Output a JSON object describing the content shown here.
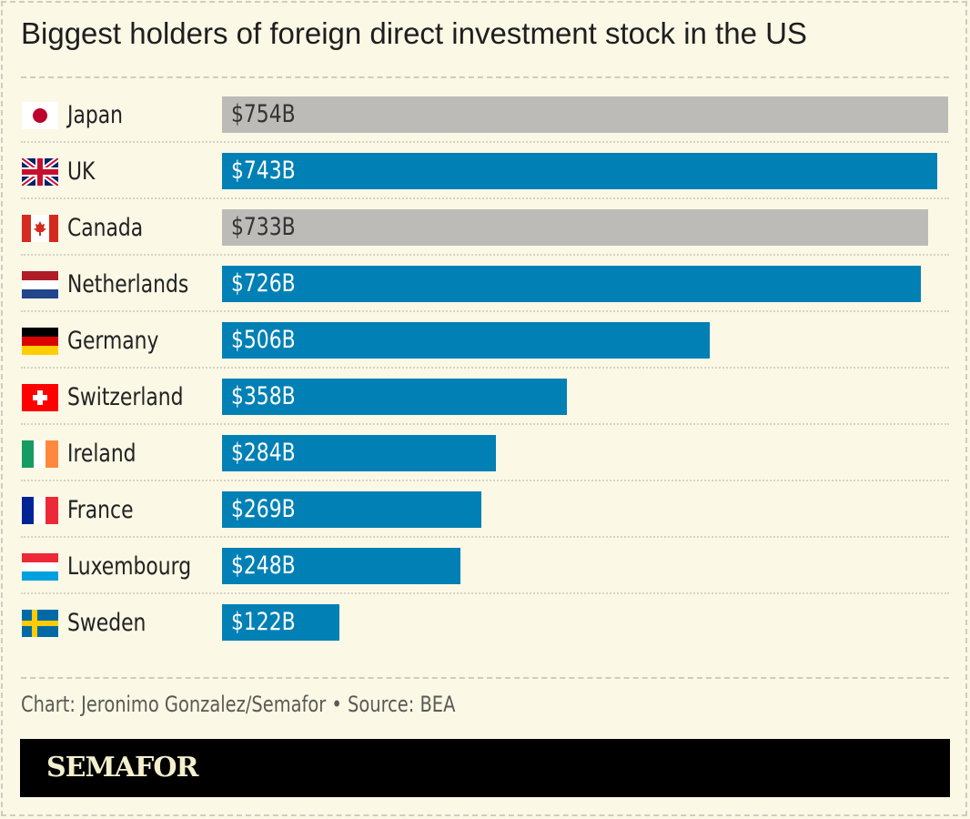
{
  "title": "Biggest holders of foreign direct investment stock in the US",
  "credit": "Chart: Jeronimo Gonzalez/Semafor • Source: BEA",
  "logo": "SEMAFOR",
  "colors": {
    "highlight": "#0080b5",
    "muted": "#bdbbb8",
    "background": "#fbf8e6"
  },
  "chart_data": {
    "type": "bar",
    "orientation": "horizontal",
    "title": "Biggest holders of foreign direct investment stock in the US",
    "unit": "billion USD",
    "xlim": [
      0,
      754
    ],
    "grid": false,
    "categories": [
      "Japan",
      "UK",
      "Canada",
      "Netherlands",
      "Germany",
      "Switzerland",
      "Ireland",
      "France",
      "Luxembourg",
      "Sweden"
    ],
    "values": [
      754,
      743,
      733,
      726,
      506,
      358,
      284,
      269,
      248,
      122
    ],
    "labels": [
      "$754B",
      "$743B",
      "$733B",
      "$726B",
      "$506B",
      "$358B",
      "$284B",
      "$269B",
      "$248B",
      "$122B"
    ],
    "bar_colors": [
      "muted",
      "highlight",
      "muted",
      "highlight",
      "highlight",
      "highlight",
      "highlight",
      "highlight",
      "highlight",
      "highlight"
    ],
    "flags": [
      "japan-flag-icon",
      "uk-flag-icon",
      "canada-flag-icon",
      "netherlands-flag-icon",
      "germany-flag-icon",
      "switzerland-flag-icon",
      "ireland-flag-icon",
      "france-flag-icon",
      "luxembourg-flag-icon",
      "sweden-flag-icon"
    ]
  }
}
